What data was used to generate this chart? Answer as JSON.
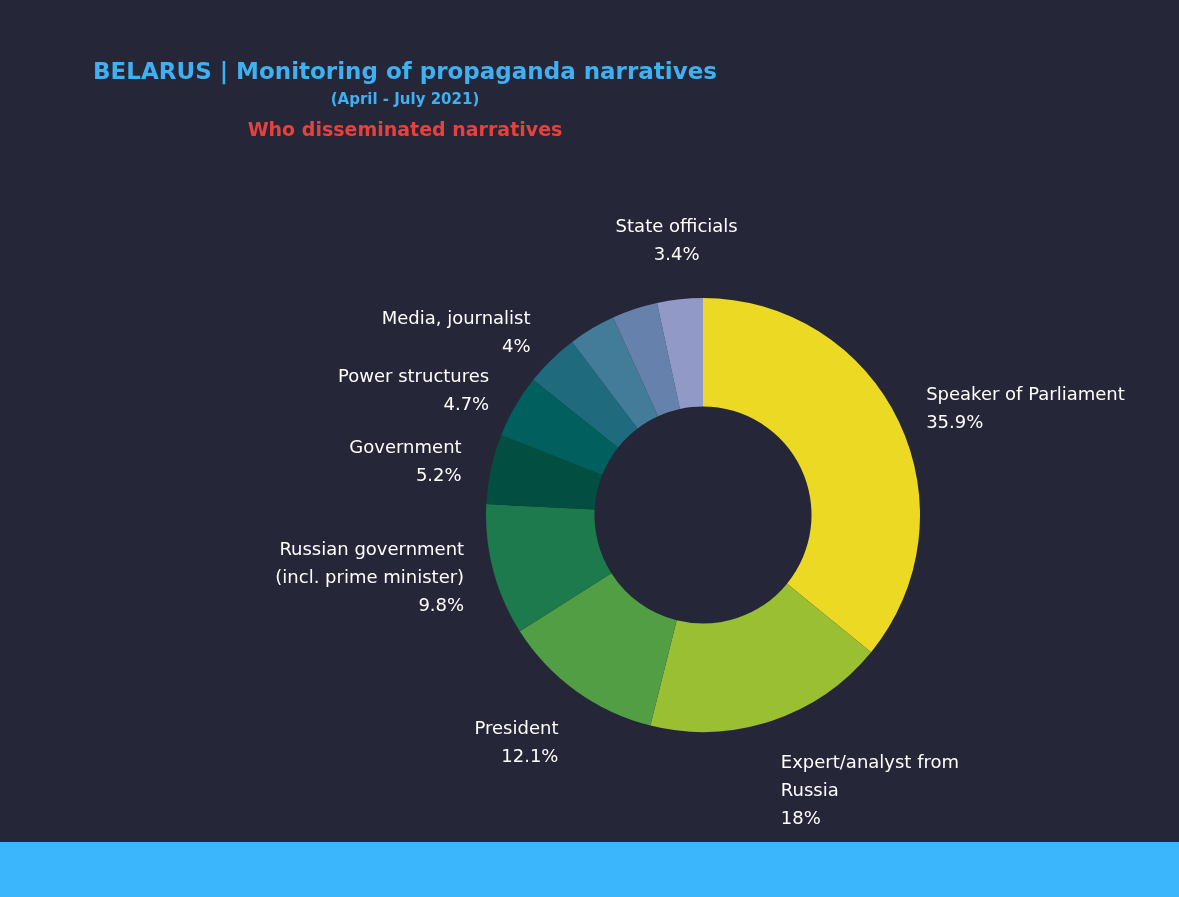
{
  "chart_data": {
    "type": "donut",
    "title": "BELARUS | Monitoring of propaganda narratives",
    "subtitle": "(April - July 2021)",
    "annotations": [
      "Who disseminated narratives"
    ],
    "categories": [
      "Speaker of Parliament",
      "Expert/analyst from Russia",
      "President",
      "Russian government (incl. prime minister)",
      "Government",
      "Power structures",
      "Media, journalist",
      null,
      null,
      "State officials"
    ],
    "values": [
      35.9,
      18,
      12.1,
      9.8,
      5.2,
      4.7,
      4,
      3.5,
      3.4,
      3.4
    ],
    "value_labels": [
      "35.9%",
      "18%",
      "12.1%",
      "9.8%",
      "5.2%",
      "4.7%",
      "4%",
      null,
      null,
      "3.4%"
    ],
    "colors": [
      "#ebd923",
      "#9abf32",
      "#519e45",
      "#1c7a4c",
      "#024f42",
      "#015f5e",
      "#1f6b7d",
      "#437c98",
      "#6681ab",
      "#9199c7"
    ],
    "legend": false
  }
}
